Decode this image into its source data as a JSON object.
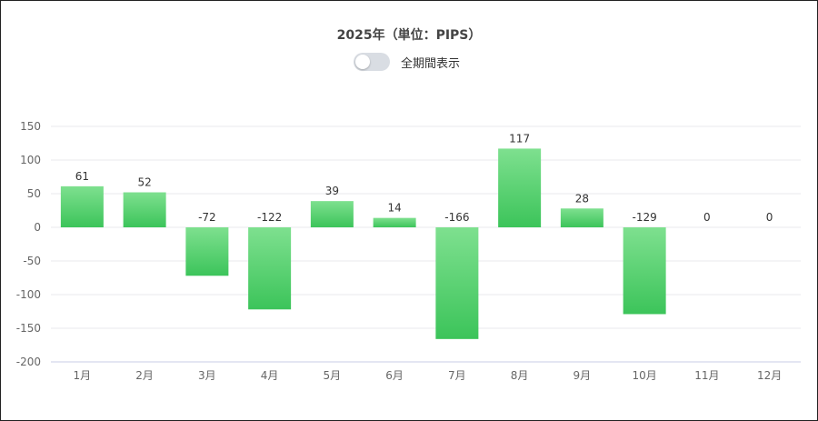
{
  "header": {
    "title": "2025年（単位：PIPS）",
    "toggle_label": "全期間表示",
    "toggle_on": false
  },
  "chart_data": {
    "type": "bar",
    "categories": [
      "1月",
      "2月",
      "3月",
      "4月",
      "5月",
      "6月",
      "7月",
      "8月",
      "9月",
      "10月",
      "11月",
      "12月"
    ],
    "values": [
      61,
      52,
      -72,
      -122,
      39,
      14,
      -166,
      117,
      28,
      -129,
      0,
      0
    ],
    "xlabel": "",
    "ylabel": "",
    "ylim": [
      -200,
      150
    ],
    "yticks": [
      150,
      100,
      50,
      0,
      -50,
      -100,
      -150,
      -200
    ],
    "grid": true,
    "bar_color_top": "#7ee08f",
    "bar_color_bottom": "#3cc45a"
  }
}
